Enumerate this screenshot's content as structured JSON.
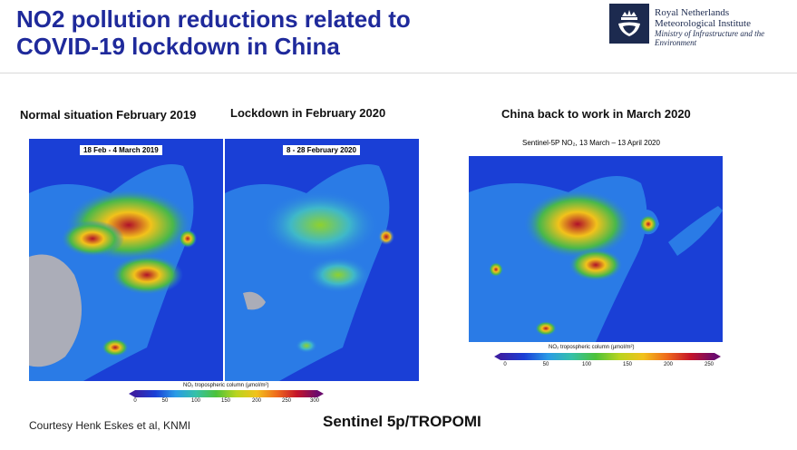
{
  "title": {
    "line1": "NO2 pollution reductions related to",
    "line2": "COVID-19 lockdown in China"
  },
  "logo": {
    "line1": "Royal Netherlands",
    "line2": "Meteorological Institute",
    "line3": "Ministry of Infrastructure and the",
    "line4": "Environment"
  },
  "panels": {
    "p1": {
      "caption": "Normal situation February 2019",
      "date": "18 Feb - 4 March 2019"
    },
    "p2": {
      "caption": "Lockdown in February 2020",
      "date": "8 - 28 February 2020"
    },
    "p3": {
      "caption": "China back to work in March 2020",
      "date": "Sentinel-5P NO₂, 13 March – 13 April 2020"
    }
  },
  "colorbar_left": {
    "title": "NO₂ tropospheric column (µmol/m²)",
    "ticks": [
      "0",
      "50",
      "100",
      "150",
      "200",
      "250",
      "300"
    ]
  },
  "colorbar_right": {
    "title": "NO₂ tropospheric column (µmol/m²)",
    "ticks": [
      "0",
      "50",
      "100",
      "150",
      "200",
      "250"
    ]
  },
  "footer": {
    "courtesy": "Courtesy Henk Eskes et al, KNMI",
    "sentinel": "Sentinel 5p/TROPOMI"
  },
  "colors": {
    "title": "#1f2a9b",
    "ocean": "#1a3fd6",
    "land": "#2a7be6"
  }
}
